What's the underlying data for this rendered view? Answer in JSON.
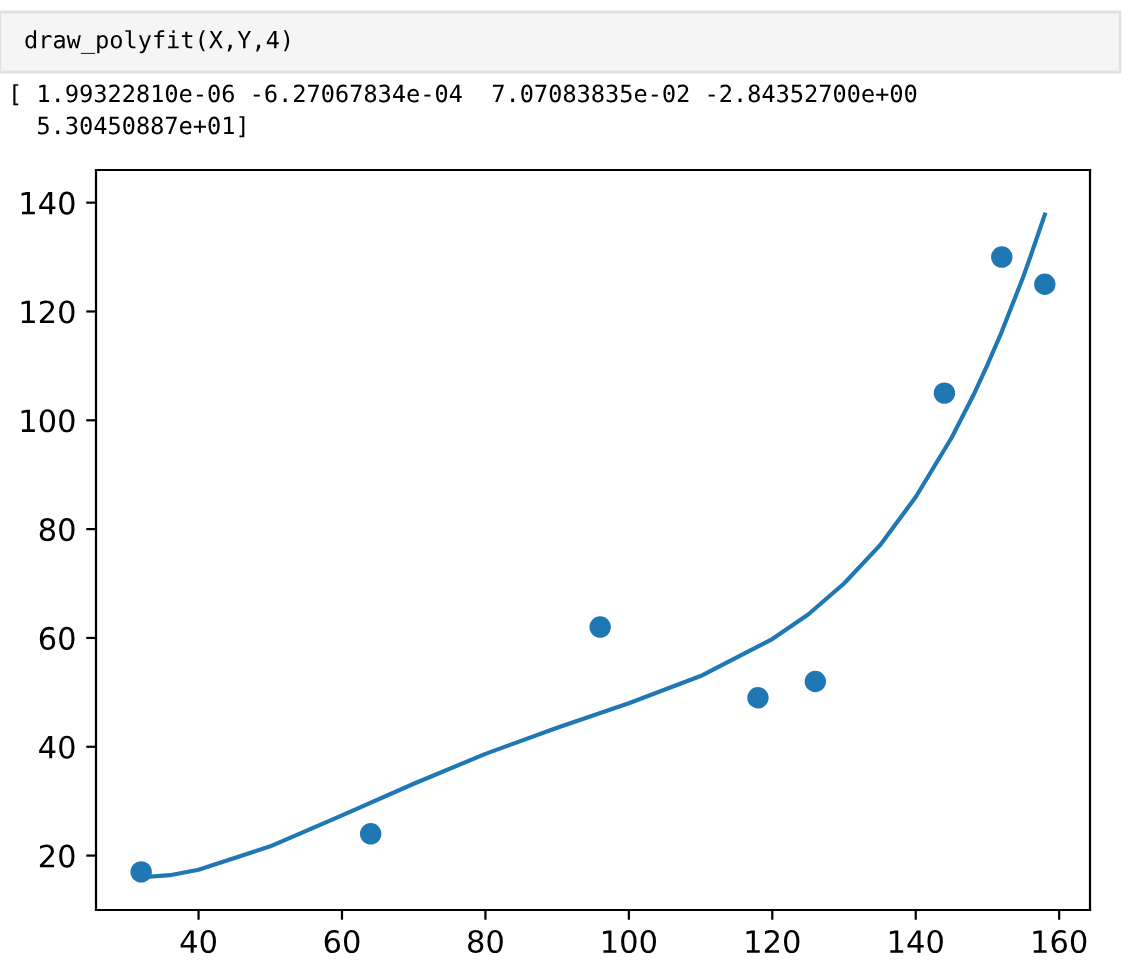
{
  "chart_data": {
    "type": "scatter",
    "annotations": [
      "draw_polyfit(X,Y,4)",
      "[ 1.99322810e-06 -6.27067834e-04  7.07083835e-02 -2.84352700e+00\n  5.30450887e+01]"
    ],
    "series": [
      {
        "color": "#1f77b4",
        "marker": "circle",
        "x": [
          32,
          64,
          96,
          118,
          126,
          144,
          152,
          158
        ],
        "values": [
          17,
          24,
          62,
          49,
          52,
          105,
          130,
          125
        ]
      },
      {
        "type": "line",
        "color": "#1f77b4",
        "line_style": "solid",
        "x": [
          32,
          36,
          40,
          50,
          60,
          70,
          80,
          90,
          100,
          110,
          120,
          125,
          130,
          135,
          140,
          145,
          148,
          150,
          152,
          155,
          156,
          158
        ],
        "values": [
          16.0,
          16.4,
          17.4,
          21.7,
          27.4,
          33.2,
          38.7,
          43.5,
          48.0,
          53.0,
          59.8,
          64.3,
          70.0,
          77.0,
          85.9,
          96.8,
          104.5,
          110.2,
          116.3,
          126.4,
          130.1,
          137.8
        ]
      }
    ],
    "xlim": [
      25.7,
      164.3
    ],
    "ylim": [
      10,
      146
    ],
    "xticks": [
      40,
      60,
      80,
      100,
      120,
      140,
      160
    ],
    "yticks": [
      20,
      40,
      60,
      80,
      100,
      120,
      140
    ],
    "grid": false,
    "legend": false
  }
}
